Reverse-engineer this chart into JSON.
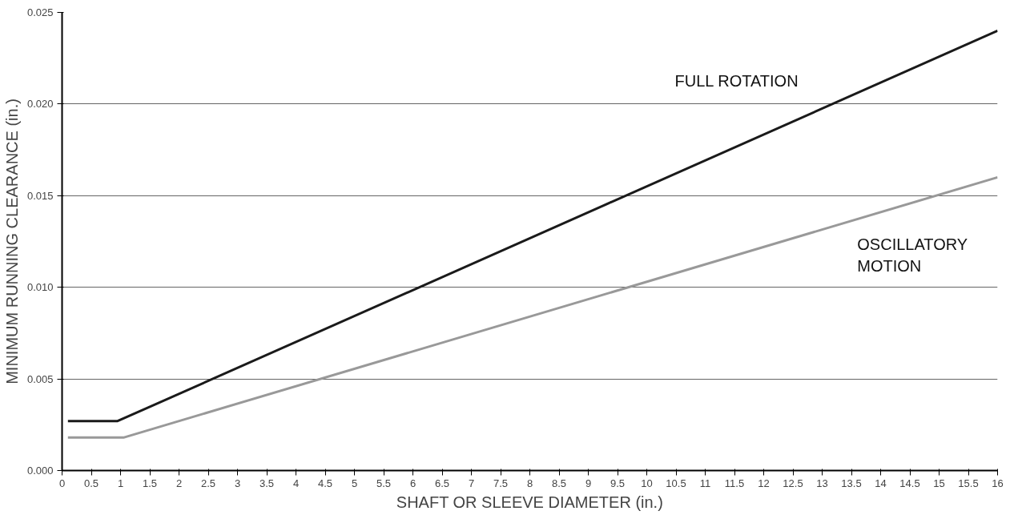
{
  "chart_data": {
    "type": "line",
    "xlabel": "SHAFT OR SLEEVE DIAMETER (in.)",
    "ylabel": "MINIMUM RUNNING CLEARANCE (in.)",
    "series": [
      {
        "name": "FULL ROTATION",
        "color": "#1a1a1a",
        "x": [
          0.1,
          0.95,
          16
        ],
        "values": [
          0.0027,
          0.0027,
          0.024
        ]
      },
      {
        "name": "OSCILLATORY\nMOTION",
        "color": "#999999",
        "x": [
          0.1,
          1.05,
          16
        ],
        "values": [
          0.0018,
          0.0018,
          0.016
        ]
      }
    ],
    "xlim": [
      0,
      16
    ],
    "ylim": [
      0,
      0.025
    ],
    "xticks": [
      0,
      0.5,
      1,
      1.5,
      2,
      2.5,
      3,
      3.5,
      4,
      4.5,
      5,
      5.5,
      6,
      6.5,
      7,
      7.5,
      8,
      8.5,
      9,
      9.5,
      10,
      10.5,
      11,
      11.5,
      12,
      12.5,
      13,
      13.5,
      14,
      14.5,
      15,
      15.5,
      16
    ],
    "yticks": [
      {
        "value": 0,
        "label": "0.000"
      },
      {
        "value": 0.005,
        "label": "0.005"
      },
      {
        "value": 0.01,
        "label": "0.010"
      },
      {
        "value": 0.015,
        "label": "0.015"
      },
      {
        "value": 0.02,
        "label": "0.020"
      },
      {
        "value": 0.025,
        "label": "0.025"
      }
    ],
    "grid": "y",
    "legend": false,
    "marker": "none",
    "line_style": "solid"
  }
}
